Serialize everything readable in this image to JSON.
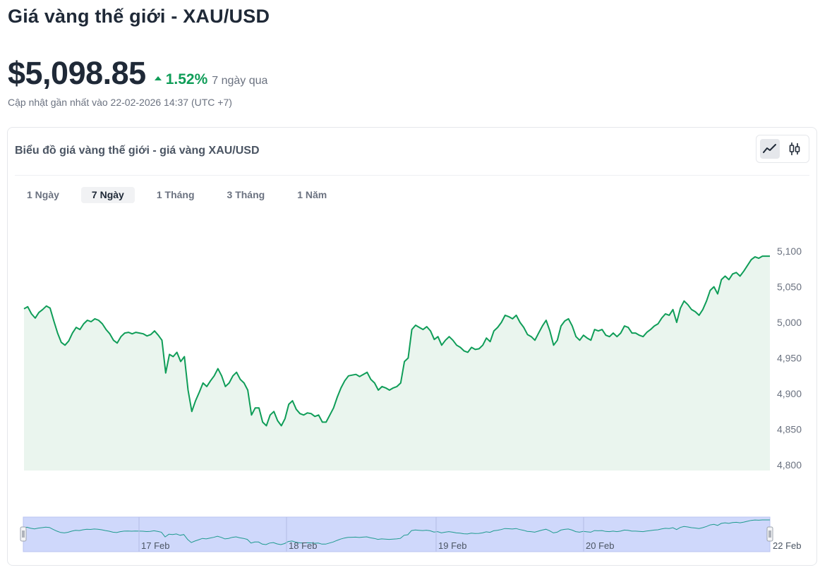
{
  "header": {
    "title": "Giá vàng thế giới - XAU/USD",
    "price": "$5,098.85",
    "change_pct": "1.52%",
    "change_period": "7 ngày qua",
    "updated": "Cập nhật gần nhất vào 22-02-2026 14:37 (UTC +7)"
  },
  "card": {
    "title": "Biểu đồ giá vàng thế giới - giá vàng XAU/USD",
    "chart_types": [
      "line-chart-icon",
      "candlestick-icon"
    ],
    "tabs": [
      {
        "label": "1 Ngày",
        "active": false
      },
      {
        "label": "7 Ngày",
        "active": true
      },
      {
        "label": "1 Tháng",
        "active": false
      },
      {
        "label": "3 Tháng",
        "active": false
      },
      {
        "label": "1 Năm",
        "active": false
      }
    ]
  },
  "colors": {
    "line": "#0f9d58",
    "area": "#eaf5ee",
    "navigator_fill": "#cfd8fb",
    "navigator_line": "#1f9b8f"
  },
  "chart_data": {
    "type": "area",
    "title": "",
    "xlabel": "",
    "ylabel": "",
    "ylim": [
      4800,
      5110
    ],
    "y_ticks": [
      "5,100",
      "5,050",
      "5,000",
      "4,950",
      "4,900",
      "4,850",
      "4,800"
    ],
    "y_tick_values": [
      5100,
      5050,
      5000,
      4950,
      4900,
      4850,
      4800
    ],
    "navigator_labels": [
      "17 Feb",
      "18 Feb",
      "19 Feb",
      "20 Feb",
      "22 Feb"
    ],
    "grid": false,
    "legend": "none",
    "series": [
      {
        "values": [
          5019,
          5022,
          5012,
          5006,
          5014,
          5018,
          5023,
          5020,
          5002,
          4985,
          4972,
          4968,
          4974,
          4985,
          4993,
          4990,
          4998,
          5003,
          5001,
          5005,
          5003,
          4998,
          4990,
          4984,
          4975,
          4971,
          4980,
          4985,
          4986,
          4984,
          4986,
          4985,
          4984,
          4981,
          4983,
          4988,
          4982,
          4975,
          4929,
          4955,
          4952,
          4958,
          4945,
          4952,
          4905,
          4875,
          4890,
          4902,
          4915,
          4910,
          4918,
          4925,
          4935,
          4925,
          4910,
          4915,
          4925,
          4930,
          4920,
          4915,
          4905,
          4870,
          4880,
          4880,
          4860,
          4855,
          4870,
          4875,
          4862,
          4855,
          4865,
          4885,
          4890,
          4878,
          4872,
          4870,
          4873,
          4872,
          4868,
          4870,
          4860,
          4860,
          4870,
          4880,
          4895,
          4908,
          4918,
          4925,
          4926,
          4927,
          4924,
          4927,
          4930,
          4920,
          4915,
          4905,
          4910,
          4908,
          4905,
          4908,
          4910,
          4915,
          4945,
          4950,
          4990,
          4996,
          4993,
          4990,
          4994,
          4988,
          4976,
          4980,
          4968,
          4975,
          4980,
          4975,
          4968,
          4965,
          4960,
          4958,
          4965,
          4962,
          4963,
          4968,
          4978,
          4973,
          4988,
          4993,
          5000,
          5010,
          5008,
          5005,
          5010,
          5000,
          4993,
          4983,
          4980,
          4975,
          4985,
          4995,
          5003,
          4988,
          4968,
          4975,
          4995,
          5002,
          5005,
          4995,
          4980,
          4975,
          4982,
          4978,
          4975,
          4990,
          4988,
          4990,
          4982,
          4980,
          4985,
          4980,
          4985,
          4995,
          4993,
          4985,
          4985,
          4982,
          4980,
          4986,
          4990,
          4995,
          4998,
          5006,
          5012,
          5010,
          5018,
          5000,
          5020,
          5030,
          5025,
          5018,
          5015,
          5010,
          5018,
          5030,
          5045,
          5050,
          5040,
          5060,
          5065,
          5060,
          5068,
          5070,
          5065,
          5072,
          5080,
          5088,
          5092,
          5090,
          5093,
          5093,
          5093
        ]
      }
    ]
  }
}
